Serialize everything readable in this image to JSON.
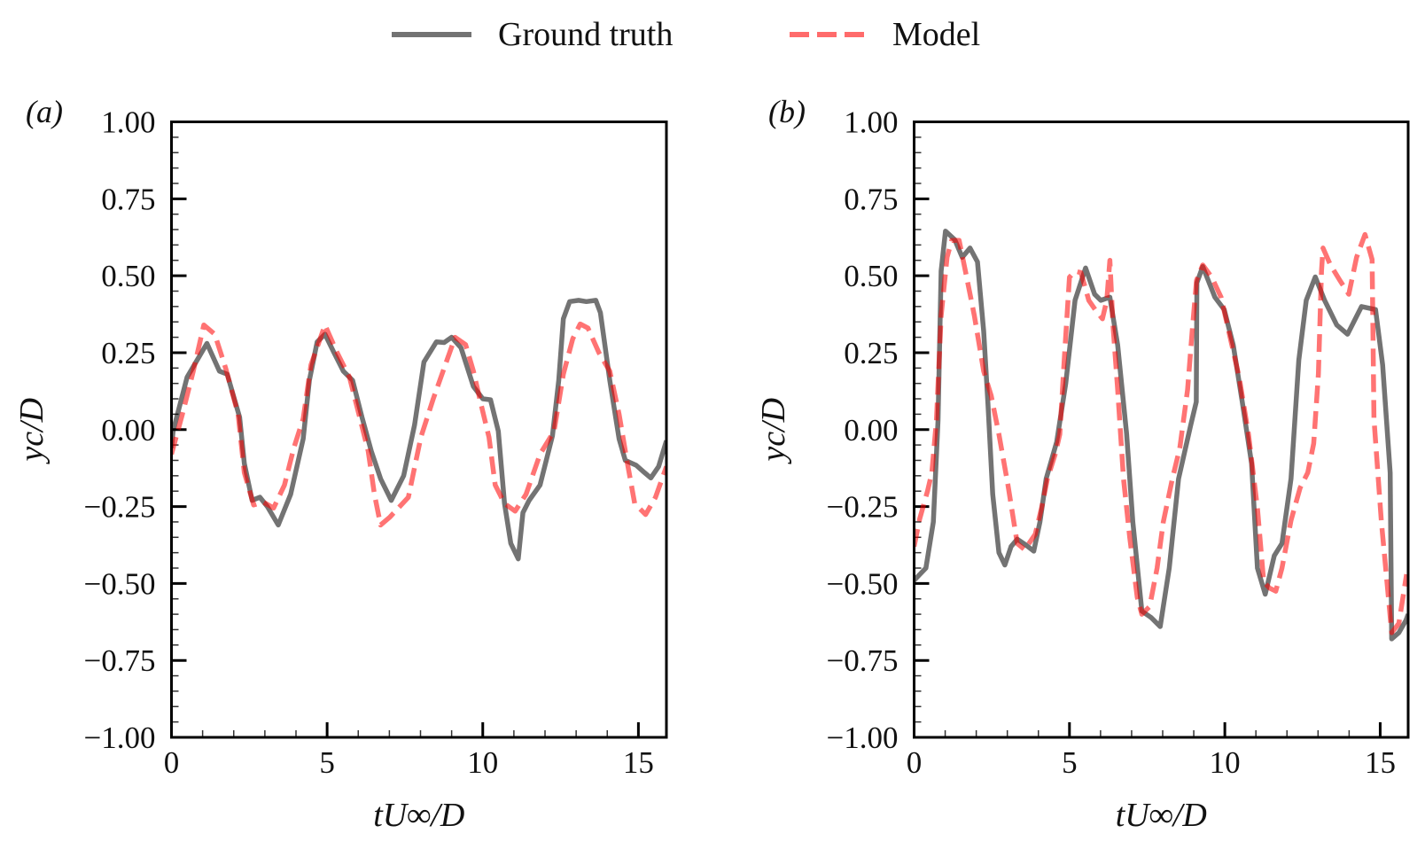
{
  "legend": {
    "items": [
      {
        "label": "Ground truth",
        "color": "#6f6f6f",
        "style": "solid"
      },
      {
        "label": "Model",
        "color": "#ff6b6b",
        "style": "dashed"
      }
    ]
  },
  "chart_data": [
    {
      "type": "line",
      "panel_label": "(a)",
      "xlabel": "tU∞/D",
      "ylabel": "yc/D",
      "xlim": [
        0,
        15.9
      ],
      "ylim": [
        -1.0,
        1.0
      ],
      "xticks": [
        0,
        5,
        10,
        15
      ],
      "xtick_labels": [
        "0",
        "5",
        "10",
        "15"
      ],
      "yticks": [
        1.0,
        0.75,
        0.5,
        0.25,
        0.0,
        -0.25,
        -0.5,
        -0.75,
        -1.0
      ],
      "ytick_labels": [
        "1.00",
        "0.75",
        "0.50",
        "0.25",
        "0.00",
        "−0.25",
        "−0.50",
        "−0.75",
        "−1.00"
      ],
      "grid": false,
      "series": [
        {
          "name": "Ground truth",
          "x": [
            0.0,
            0.05,
            0.5,
            1.14,
            1.54,
            1.79,
            2.19,
            2.34,
            2.59,
            2.84,
            3.08,
            3.43,
            3.83,
            4.23,
            4.43,
            4.68,
            4.93,
            5.22,
            5.52,
            5.82,
            6.12,
            6.42,
            6.72,
            7.06,
            7.46,
            7.81,
            8.11,
            8.51,
            8.76,
            9.0,
            9.3,
            9.7,
            10.0,
            10.25,
            10.5,
            10.7,
            10.9,
            11.14,
            11.29,
            11.49,
            11.84,
            12.24,
            12.44,
            12.59,
            12.79,
            13.08,
            13.33,
            13.63,
            13.78,
            14.08,
            14.38,
            14.58,
            14.93,
            15.2,
            15.4,
            15.65,
            15.9
          ],
          "y": [
            -0.06,
            -0.005,
            0.17,
            0.28,
            0.19,
            0.18,
            0.04,
            -0.11,
            -0.23,
            -0.22,
            -0.25,
            -0.31,
            -0.21,
            -0.03,
            0.16,
            0.285,
            0.31,
            0.25,
            0.19,
            0.16,
            0.04,
            -0.07,
            -0.16,
            -0.23,
            -0.15,
            0.015,
            0.22,
            0.285,
            0.283,
            0.3,
            0.266,
            0.14,
            0.1,
            0.097,
            -0.005,
            -0.24,
            -0.37,
            -0.42,
            -0.27,
            -0.23,
            -0.18,
            -0.02,
            0.16,
            0.36,
            0.416,
            0.42,
            0.416,
            0.42,
            0.38,
            0.16,
            -0.03,
            -0.1,
            -0.116,
            -0.14,
            -0.157,
            -0.12,
            -0.036
          ]
        },
        {
          "name": "Model",
          "x": [
            0.0,
            0.35,
            0.7,
            1.04,
            1.39,
            1.74,
            2.14,
            2.34,
            2.64,
            2.94,
            3.28,
            3.63,
            3.93,
            4.23,
            4.48,
            4.93,
            5.32,
            5.72,
            6.02,
            6.32,
            6.52,
            6.72,
            7.01,
            7.61,
            8.01,
            8.41,
            8.76,
            9.11,
            9.45,
            9.7,
            9.95,
            10.2,
            10.4,
            10.7,
            11.04,
            11.39,
            11.84,
            12.29,
            12.59,
            12.89,
            13.13,
            13.38,
            13.73,
            14.08,
            14.38,
            14.63,
            14.88,
            15.23,
            15.55,
            15.9
          ],
          "y": [
            -0.08,
            0.05,
            0.19,
            0.34,
            0.31,
            0.2,
            0.05,
            -0.14,
            -0.245,
            -0.235,
            -0.255,
            -0.18,
            -0.06,
            0.035,
            0.21,
            0.34,
            0.25,
            0.17,
            0.05,
            -0.07,
            -0.21,
            -0.31,
            -0.285,
            -0.22,
            -0.025,
            0.1,
            0.2,
            0.3,
            0.276,
            0.19,
            0.08,
            -0.025,
            -0.18,
            -0.24,
            -0.265,
            -0.21,
            -0.08,
            -0.005,
            0.18,
            0.295,
            0.343,
            0.33,
            0.25,
            0.19,
            0.05,
            -0.1,
            -0.24,
            -0.276,
            -0.22,
            -0.12
          ]
        }
      ]
    },
    {
      "type": "line",
      "panel_label": "(b)",
      "xlabel": "tU∞/D",
      "ylabel": "yc/D",
      "xlim": [
        0,
        15.9
      ],
      "ylim": [
        -1.0,
        1.0
      ],
      "xticks": [
        0,
        5,
        10,
        15
      ],
      "xtick_labels": [
        "0",
        "5",
        "10",
        "15"
      ],
      "yticks": [
        1.0,
        0.75,
        0.5,
        0.25,
        0.0,
        -0.25,
        -0.5,
        -0.75,
        -1.0
      ],
      "ytick_labels": [
        "1.00",
        "0.75",
        "0.50",
        "0.25",
        "0.00",
        "−0.25",
        "−0.50",
        "−0.75",
        "−1.00"
      ],
      "grid": false,
      "series": [
        {
          "name": "Ground truth",
          "x": [
            0.0,
            0.38,
            0.62,
            0.77,
            0.87,
            1.01,
            1.31,
            1.55,
            1.8,
            2.04,
            2.24,
            2.38,
            2.53,
            2.73,
            2.92,
            3.12,
            3.32,
            3.61,
            3.85,
            4.05,
            4.25,
            4.59,
            4.88,
            5.18,
            5.52,
            5.81,
            6.01,
            6.3,
            6.55,
            6.84,
            7.04,
            7.33,
            7.62,
            7.92,
            8.21,
            8.51,
            8.9,
            9.08,
            9.1,
            9.29,
            9.68,
            9.98,
            10.27,
            10.56,
            10.86,
            11.05,
            11.3,
            11.59,
            11.84,
            12.13,
            12.38,
            12.62,
            12.91,
            13.21,
            13.6,
            13.95,
            14.4,
            14.85,
            15.08,
            15.32,
            15.37,
            15.6,
            15.83,
            15.9
          ],
          "y": [
            -0.49,
            -0.45,
            -0.3,
            0.03,
            0.515,
            0.645,
            0.617,
            0.56,
            0.59,
            0.545,
            0.32,
            0.08,
            -0.21,
            -0.4,
            -0.44,
            -0.38,
            -0.356,
            -0.376,
            -0.395,
            -0.3,
            -0.16,
            -0.04,
            0.15,
            0.42,
            0.525,
            0.44,
            0.42,
            0.43,
            0.275,
            -0.014,
            -0.3,
            -0.59,
            -0.61,
            -0.64,
            -0.45,
            -0.16,
            0.014,
            0.09,
            0.477,
            0.53,
            0.43,
            0.39,
            0.275,
            0.09,
            -0.11,
            -0.45,
            -0.535,
            -0.41,
            -0.37,
            -0.16,
            0.226,
            0.42,
            0.496,
            0.42,
            0.34,
            0.31,
            0.4,
            0.39,
            0.21,
            -0.14,
            -0.68,
            -0.66,
            -0.62,
            -0.6
          ]
        },
        {
          "name": "Model",
          "x": [
            0.0,
            0.18,
            0.43,
            0.57,
            0.72,
            0.87,
            1.06,
            1.21,
            1.45,
            1.65,
            1.94,
            2.24,
            2.48,
            2.73,
            3.02,
            3.32,
            3.56,
            3.9,
            4.1,
            4.29,
            4.54,
            4.69,
            4.83,
            5.0,
            5.18,
            5.37,
            5.62,
            5.86,
            6.06,
            6.2,
            6.3,
            6.4,
            6.55,
            6.74,
            6.94,
            7.18,
            7.33,
            7.58,
            7.82,
            8.02,
            8.31,
            8.55,
            8.8,
            8.95,
            9.09,
            9.29,
            9.58,
            9.88,
            10.17,
            10.46,
            10.76,
            11.05,
            11.25,
            11.44,
            11.64,
            11.84,
            12.13,
            12.42,
            12.67,
            12.86,
            13.01,
            13.11,
            13.16,
            13.4,
            13.7,
            13.99,
            14.24,
            14.51,
            14.74,
            14.76,
            14.8,
            15.04,
            15.37,
            15.6,
            15.85
          ],
          "y": [
            -0.38,
            -0.29,
            -0.2,
            -0.14,
            0.03,
            0.37,
            0.56,
            0.615,
            0.615,
            0.515,
            0.37,
            0.19,
            0.11,
            -0.015,
            -0.18,
            -0.37,
            -0.39,
            -0.34,
            -0.255,
            -0.16,
            -0.08,
            -0.015,
            0.226,
            0.495,
            0.515,
            0.51,
            0.42,
            0.385,
            0.36,
            0.42,
            0.55,
            0.34,
            0.13,
            -0.16,
            -0.35,
            -0.545,
            -0.6,
            -0.575,
            -0.45,
            -0.3,
            -0.16,
            -0.06,
            0.13,
            0.32,
            0.485,
            0.535,
            0.495,
            0.43,
            0.3,
            0.17,
            -0.015,
            -0.255,
            -0.495,
            -0.515,
            -0.525,
            -0.45,
            -0.295,
            -0.19,
            -0.14,
            -0.045,
            0.18,
            0.515,
            0.59,
            0.535,
            0.485,
            0.44,
            0.56,
            0.634,
            0.553,
            0.39,
            0.035,
            -0.3,
            -0.66,
            -0.63,
            -0.47
          ]
        }
      ]
    }
  ]
}
